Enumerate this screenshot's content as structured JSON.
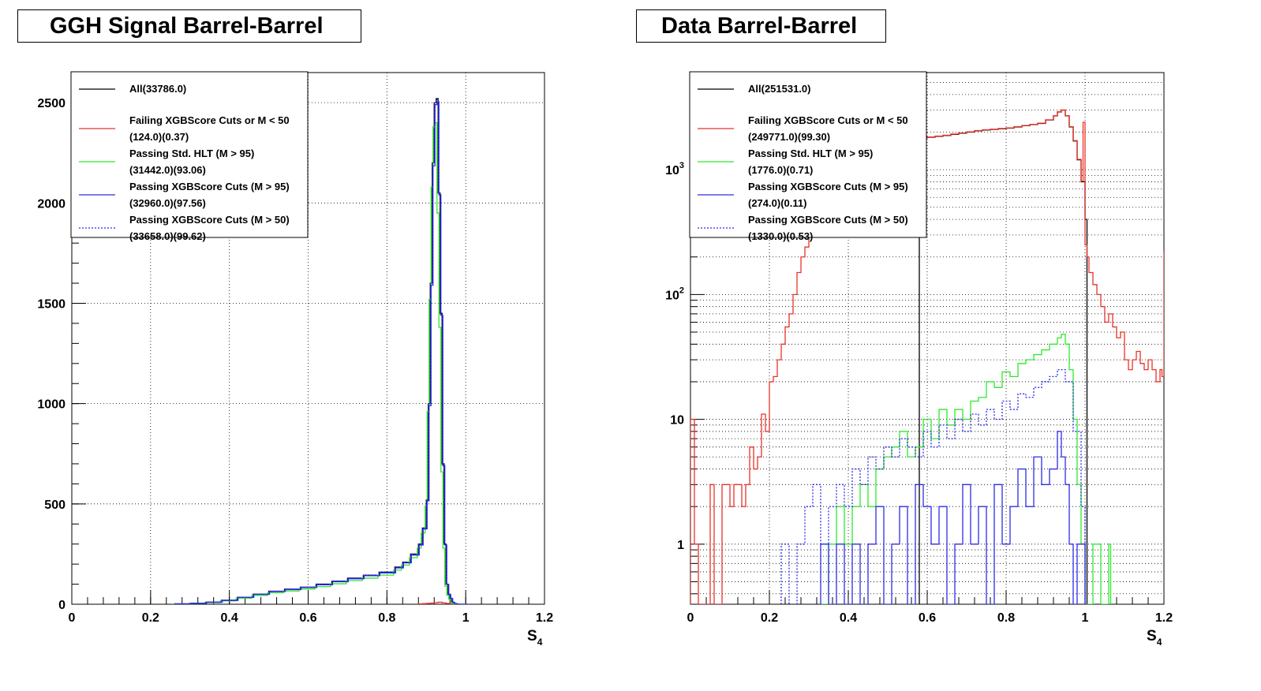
{
  "chart_data": [
    {
      "type": "line",
      "title": "GGH Signal Barrel-Barrel",
      "xlabel": "S",
      "xlabel_sub": "4",
      "ylabel": "",
      "yscale": "linear",
      "xlim": [
        0,
        1.2
      ],
      "ylim": [
        0,
        2650
      ],
      "x_ticks": [
        "0",
        "0.2",
        "0.4",
        "0.6",
        "0.8",
        "1",
        "1.2"
      ],
      "y_ticks": [
        "0",
        "500",
        "1000",
        "1500",
        "2000",
        "2500"
      ],
      "grid": true,
      "legend_position": "top-left",
      "legend": [
        {
          "label": "All(33786.0)",
          "color": "#000000",
          "style": "solid"
        },
        {
          "label": "Failing XGBScore Cuts or M < 50",
          "label2": "(124.0)(0.37)",
          "color": "#e8332b",
          "style": "solid"
        },
        {
          "label": "Passing Std. HLT (M > 95)",
          "label2": "(31442.0)(93.06)",
          "color": "#2ee82e",
          "style": "solid"
        },
        {
          "label": "Passing XGBScore Cuts (M > 95)",
          "label2": "(32960.0)(97.56)",
          "color": "#2d2de8",
          "style": "solid"
        },
        {
          "label": "Passing XGBScore Cuts (M > 50)",
          "label2": "(33658.0)(99.62)",
          "color": "#2d2de8",
          "style": "dotted"
        }
      ],
      "series": [
        {
          "name": "All(33786.0)",
          "color": "#000000",
          "style": "solid",
          "offset": 0,
          "x": [
            0.26,
            0.3,
            0.34,
            0.38,
            0.42,
            0.46,
            0.5,
            0.54,
            0.58,
            0.62,
            0.66,
            0.7,
            0.74,
            0.78,
            0.82,
            0.84,
            0.86,
            0.88,
            0.89,
            0.9,
            0.905,
            0.91,
            0.915,
            0.92,
            0.925,
            0.93,
            0.935,
            0.94,
            0.945,
            0.95,
            0.955,
            0.96,
            0.965,
            0.97,
            0.975,
            0.98,
            0.985,
            0.99,
            0.995,
            1.0
          ],
          "y": [
            2,
            5,
            10,
            20,
            35,
            50,
            65,
            75,
            85,
            100,
            115,
            130,
            145,
            160,
            185,
            210,
            250,
            300,
            380,
            520,
            1000,
            1600,
            2200,
            2500,
            2520,
            2050,
            1450,
            700,
            300,
            100,
            50,
            30,
            10,
            4,
            1,
            0,
            0,
            0,
            0,
            0
          ]
        },
        {
          "name": "Failing XGBScore Cuts or M < 50",
          "color": "#e8332b",
          "style": "solid",
          "offset": 0,
          "x": [
            0.88,
            0.89,
            0.9,
            0.91,
            0.92,
            0.93,
            0.94,
            0.95,
            0.96
          ],
          "y": [
            2,
            3,
            4,
            6,
            8,
            10,
            7,
            4,
            2
          ]
        },
        {
          "name": "Passing Std. HLT (M > 95)",
          "color": "#2ee82e",
          "style": "solid",
          "offset": -0.003,
          "x": [
            0.26,
            0.3,
            0.34,
            0.38,
            0.42,
            0.46,
            0.5,
            0.54,
            0.58,
            0.62,
            0.66,
            0.7,
            0.74,
            0.78,
            0.82,
            0.84,
            0.86,
            0.88,
            0.89,
            0.9,
            0.905,
            0.91,
            0.915,
            0.92,
            0.925,
            0.93,
            0.935,
            0.94,
            0.945,
            0.95,
            0.955,
            0.96,
            0.965,
            0.97,
            0.975,
            0.98,
            0.985,
            0.99,
            0.995,
            1.0
          ],
          "y": [
            1,
            4,
            8,
            17,
            30,
            44,
            57,
            66,
            76,
            88,
            102,
            118,
            130,
            145,
            170,
            195,
            232,
            280,
            355,
            490,
            960,
            1520,
            2080,
            2380,
            2400,
            1950,
            1380,
            660,
            280,
            90,
            45,
            25,
            8,
            3,
            1,
            0,
            0,
            0,
            0,
            0
          ]
        },
        {
          "name": "Passing XGBScore Cuts (M > 95)",
          "color": "#2d2de8",
          "style": "solid",
          "offset": 0.002,
          "x": [
            0.26,
            0.3,
            0.34,
            0.38,
            0.42,
            0.46,
            0.5,
            0.54,
            0.58,
            0.62,
            0.66,
            0.7,
            0.74,
            0.78,
            0.82,
            0.84,
            0.86,
            0.88,
            0.89,
            0.9,
            0.905,
            0.91,
            0.915,
            0.92,
            0.925,
            0.93,
            0.935,
            0.94,
            0.945,
            0.95,
            0.955,
            0.96,
            0.965,
            0.97,
            0.975,
            0.98,
            0.985,
            0.99,
            0.995,
            1.0
          ],
          "y": [
            2,
            5,
            10,
            19,
            34,
            49,
            63,
            73,
            83,
            97,
            112,
            127,
            142,
            156,
            181,
            206,
            245,
            295,
            375,
            515,
            990,
            1590,
            2185,
            2490,
            2505,
            2040,
            1440,
            690,
            295,
            98,
            48,
            28,
            9,
            4,
            1,
            0,
            0,
            0,
            0,
            0
          ]
        },
        {
          "name": "Passing XGBScore Cuts (M > 50)",
          "color": "#2d2de8",
          "style": "dotted",
          "offset": 0.001,
          "x": [
            0.26,
            0.3,
            0.34,
            0.38,
            0.42,
            0.46,
            0.5,
            0.54,
            0.58,
            0.62,
            0.66,
            0.7,
            0.74,
            0.78,
            0.82,
            0.84,
            0.86,
            0.88,
            0.89,
            0.9,
            0.905,
            0.91,
            0.915,
            0.92,
            0.925,
            0.93,
            0.935,
            0.94,
            0.945,
            0.95,
            0.955,
            0.96,
            0.965,
            0.97,
            0.975,
            0.98,
            0.985,
            0.99,
            0.995,
            1.0
          ],
          "y": [
            2,
            5,
            10,
            20,
            35,
            50,
            65,
            75,
            85,
            100,
            115,
            130,
            145,
            160,
            185,
            210,
            250,
            300,
            380,
            520,
            1000,
            1600,
            2200,
            2500,
            2515,
            2050,
            1445,
            695,
            298,
            99,
            49,
            29,
            10,
            4,
            1,
            0,
            0,
            0,
            0,
            0
          ]
        }
      ]
    },
    {
      "type": "line",
      "title": "Data Barrel-Barrel",
      "xlabel": "S",
      "xlabel_sub": "4",
      "ylabel": "",
      "yscale": "log",
      "xlim": [
        0,
        1.2
      ],
      "ylim": [
        0.33,
        6000
      ],
      "x_ticks": [
        "0",
        "0.2",
        "0.4",
        "0.6",
        "0.8",
        "1",
        "1.2"
      ],
      "y_ticks": [
        {
          "value": 1,
          "label": "1"
        },
        {
          "value": 10,
          "label": "10"
        },
        {
          "value": 100,
          "label": "10",
          "exp": "2"
        },
        {
          "value": 1000,
          "label": "10",
          "exp": "3"
        }
      ],
      "grid": true,
      "legend_position": "top-left",
      "legend": [
        {
          "label": "All(251531.0)",
          "color": "#000000",
          "style": "solid"
        },
        {
          "label": "Failing XGBScore Cuts or M < 50",
          "label2": "(249771.0)(99.30)",
          "color": "#e8332b",
          "style": "solid"
        },
        {
          "label": "Passing Std. HLT (M > 95)",
          "label2": "(1776.0)(0.71)",
          "color": "#2ee82e",
          "style": "solid"
        },
        {
          "label": "Passing XGBScore Cuts (M > 95)",
          "label2": "(274.0)(0.11)",
          "color": "#2d2de8",
          "style": "solid"
        },
        {
          "label": "Passing XGBScore Cuts (M > 50)",
          "label2": "(1330.0)(0.53)",
          "color": "#2d2de8",
          "style": "dotted"
        }
      ],
      "series": [
        {
          "name": "All(251531.0)",
          "color": "#000000",
          "style": "solid",
          "x": [
            0.58,
            0.6,
            0.62,
            0.64,
            0.66,
            0.68,
            0.7,
            0.72,
            0.74,
            0.76,
            0.78,
            0.8,
            0.82,
            0.84,
            0.86,
            0.88,
            0.9,
            0.92,
            0.93,
            0.94,
            0.95,
            0.96,
            0.97,
            0.98,
            0.99,
            1.0
          ],
          "y": [
            1800,
            1820,
            1850,
            1880,
            1920,
            1960,
            2000,
            2050,
            2080,
            2100,
            2130,
            2150,
            2200,
            2250,
            2300,
            2350,
            2500,
            2700,
            2900,
            3000,
            2700,
            2200,
            1700,
            1200,
            800,
            400
          ]
        },
        {
          "name": "Failing XGBScore Cuts or M < 50",
          "color": "#e8332b",
          "style": "solid",
          "x": [
            0.0,
            0.01,
            0.02,
            0.03,
            0.04,
            0.05,
            0.06,
            0.07,
            0.08,
            0.09,
            0.1,
            0.11,
            0.12,
            0.13,
            0.14,
            0.15,
            0.16,
            0.17,
            0.18,
            0.19,
            0.2,
            0.21,
            0.22,
            0.23,
            0.24,
            0.25,
            0.26,
            0.27,
            0.28,
            0.29,
            0.3,
            0.58,
            0.6,
            0.62,
            0.64,
            0.66,
            0.68,
            0.7,
            0.72,
            0.74,
            0.76,
            0.78,
            0.8,
            0.82,
            0.84,
            0.86,
            0.88,
            0.9,
            0.92,
            0.93,
            0.94,
            0.95,
            0.96,
            0.97,
            0.98,
            0.99,
            0.995,
            1.0,
            1.005,
            1.01,
            1.02,
            1.03,
            1.04,
            1.05,
            1.06,
            1.07,
            1.08,
            1.09,
            1.1,
            1.11,
            1.12,
            1.13,
            1.14,
            1.15,
            1.16,
            1.17,
            1.18,
            1.19,
            1.195,
            1.2
          ],
          "y": [
            10,
            1,
            0.3,
            0.3,
            0.3,
            3,
            0.3,
            0.3,
            3,
            3,
            2,
            3,
            3,
            2,
            3,
            6,
            4,
            5,
            11,
            8,
            20,
            22,
            30,
            40,
            55,
            70,
            100,
            150,
            200,
            240,
            350,
            1800,
            1830,
            1860,
            1890,
            1930,
            1970,
            2010,
            2060,
            2090,
            2110,
            2140,
            2160,
            2210,
            2260,
            2310,
            2360,
            2510,
            2710,
            2910,
            3010,
            2710,
            2210,
            1710,
            1210,
            810,
            2400,
            250,
            200,
            150,
            120,
            100,
            80,
            60,
            70,
            55,
            45,
            50,
            30,
            25,
            30,
            35,
            28,
            25,
            30,
            25,
            20,
            25,
            22,
            220
          ]
        },
        {
          "name": "Passing Std. HLT (M > 95)",
          "color": "#2ee82e",
          "style": "solid",
          "x": [
            0.33,
            0.35,
            0.37,
            0.39,
            0.41,
            0.43,
            0.45,
            0.47,
            0.49,
            0.51,
            0.53,
            0.55,
            0.57,
            0.59,
            0.61,
            0.63,
            0.65,
            0.67,
            0.69,
            0.71,
            0.73,
            0.75,
            0.77,
            0.79,
            0.81,
            0.83,
            0.85,
            0.87,
            0.89,
            0.91,
            0.93,
            0.94,
            0.95,
            0.96,
            0.97,
            0.98,
            0.99,
            1.0,
            1.02,
            1.04,
            1.06
          ],
          "y": [
            0.3,
            1,
            2,
            1,
            2,
            3,
            2,
            4,
            5,
            6,
            8,
            5,
            6,
            10,
            7,
            12,
            9,
            12,
            10,
            14,
            15,
            20,
            18,
            24,
            22,
            28,
            30,
            33,
            36,
            40,
            45,
            48,
            40,
            25,
            10,
            3,
            1,
            0.3,
            1,
            0.3,
            1
          ]
        },
        {
          "name": "Passing XGBScore Cuts (M > 95)",
          "color": "#2d2de8",
          "style": "solid",
          "x": [
            0.33,
            0.35,
            0.37,
            0.39,
            0.41,
            0.43,
            0.45,
            0.47,
            0.49,
            0.51,
            0.53,
            0.55,
            0.57,
            0.59,
            0.61,
            0.63,
            0.65,
            0.67,
            0.69,
            0.71,
            0.73,
            0.75,
            0.77,
            0.79,
            0.81,
            0.83,
            0.85,
            0.87,
            0.89,
            0.91,
            0.93,
            0.94,
            0.95,
            0.96,
            0.97,
            0.98,
            1.0
          ],
          "y": [
            1,
            0.3,
            1,
            0.3,
            1,
            0.3,
            1,
            2,
            0.3,
            1,
            2,
            0.3,
            3,
            2,
            1,
            2,
            0.3,
            1,
            3,
            1,
            2,
            0.3,
            3,
            1,
            2,
            4,
            2,
            5,
            3,
            4,
            8,
            5,
            3,
            1,
            0.3,
            1,
            0.3
          ]
        },
        {
          "name": "Passing XGBScore Cuts (M > 50)",
          "color": "#2d2de8",
          "style": "dotted",
          "x": [
            0.23,
            0.25,
            0.27,
            0.29,
            0.31,
            0.33,
            0.35,
            0.37,
            0.39,
            0.41,
            0.43,
            0.45,
            0.47,
            0.49,
            0.51,
            0.53,
            0.55,
            0.57,
            0.59,
            0.61,
            0.63,
            0.65,
            0.67,
            0.69,
            0.71,
            0.73,
            0.75,
            0.77,
            0.79,
            0.81,
            0.83,
            0.85,
            0.87,
            0.89,
            0.91,
            0.93,
            0.95,
            0.97,
            0.99,
            1.0
          ],
          "y": [
            1,
            0.3,
            1,
            2,
            3,
            1,
            2,
            3,
            2,
            4,
            3,
            5,
            4,
            6,
            5,
            7,
            6,
            5,
            8,
            6,
            9,
            7,
            10,
            8,
            11,
            9,
            12,
            10,
            14,
            12,
            16,
            15,
            18,
            20,
            22,
            25,
            20,
            8,
            2,
            0.3
          ]
        }
      ]
    }
  ]
}
